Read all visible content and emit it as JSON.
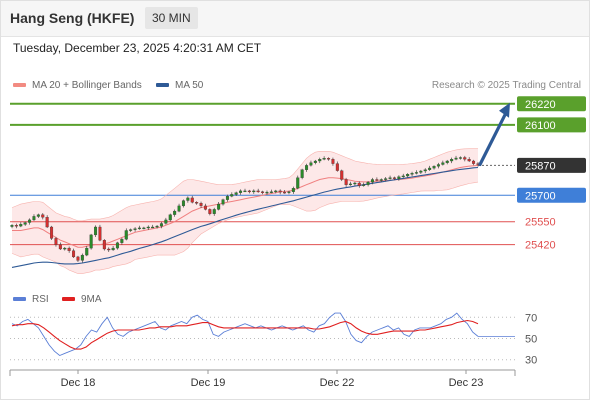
{
  "header": {
    "instrument": "Hang Seng (HKFE)",
    "timeframe": "30 MIN"
  },
  "datetime": "Tuesday, December 23, 2025 4:20:31 AM CET",
  "legend": {
    "items": [
      {
        "label": "MA 20 + Bollinger Bands",
        "color": "#f28b82"
      },
      {
        "label": "MA 50",
        "color": "#2e5a96"
      }
    ],
    "copyright": "Research © 2025 Trading Central"
  },
  "rsi_legend": {
    "items": [
      {
        "label": "RSI",
        "color": "#5b7fd6"
      },
      {
        "label": "9MA",
        "color": "#e02020"
      }
    ]
  },
  "chart_data": [
    {
      "type": "candlestick",
      "y_range": [
        25230,
        26270
      ],
      "x_tick_labels": [
        "Dec 18",
        "Dec 19",
        "Dec 22",
        "Dec 23"
      ],
      "levels": [
        {
          "label": "26220",
          "value": 26220,
          "kind": "target",
          "color": "#5aa02c"
        },
        {
          "label": "26100",
          "value": 26100,
          "kind": "resistance",
          "color": "#5aa02c"
        },
        {
          "label": "25870",
          "value": 25870,
          "kind": "last",
          "color": "#333333"
        },
        {
          "label": "25700",
          "value": 25700,
          "kind": "pivot",
          "color": "#3f7fd8"
        },
        {
          "label": "25550",
          "value": 25550,
          "kind": "support",
          "color": "#e05050"
        },
        {
          "label": "25420",
          "value": 25420,
          "kind": "support",
          "color": "#e05050"
        }
      ],
      "close": [
        25530,
        25525,
        25535,
        25545,
        25560,
        25580,
        25590,
        25575,
        25520,
        25455,
        25420,
        25395,
        25400,
        25385,
        25350,
        25330,
        25360,
        25400,
        25475,
        25520,
        25445,
        25395,
        25390,
        25400,
        25430,
        25450,
        25500,
        25505,
        25510,
        25515,
        25515,
        25520,
        25520,
        25525,
        25540,
        25560,
        25590,
        25610,
        25640,
        25670,
        25685,
        25660,
        25655,
        25640,
        25620,
        25595,
        25620,
        25650,
        25675,
        25695,
        25705,
        25715,
        25725,
        25725,
        25720,
        25725,
        25720,
        25715,
        25718,
        25720,
        25725,
        25718,
        25715,
        25720,
        25740,
        25800,
        25845,
        25870,
        25885,
        25895,
        25905,
        25910,
        25905,
        25880,
        25840,
        25790,
        25760,
        25765,
        25770,
        25755,
        25760,
        25775,
        25790,
        25785,
        25790,
        25795,
        25800,
        25795,
        25805,
        25810,
        25820,
        25825,
        25830,
        25838,
        25845,
        25855,
        25865,
        25875,
        25885,
        25895,
        25905,
        25912,
        25915,
        25905,
        25895,
        25880,
        25875
      ],
      "ma20": [
        25500,
        25500,
        25500,
        25505,
        25510,
        25515,
        25515,
        25505,
        25490,
        25475,
        25460,
        25445,
        25435,
        25425,
        25415,
        25405,
        25405,
        25410,
        25415,
        25420,
        25420,
        25425,
        25430,
        25440,
        25450,
        25460,
        25470,
        25480,
        25490,
        25495,
        25500,
        25505,
        25510,
        25515,
        25520,
        25530,
        25540,
        25550,
        25565,
        25580,
        25595,
        25610,
        25620,
        25630,
        25635,
        25640,
        25645,
        25650,
        25655,
        25660,
        25665,
        25670,
        25675,
        25680,
        25685,
        25690,
        25695,
        25700,
        25705,
        25710,
        25715,
        25720,
        25722,
        25724,
        25730,
        25740,
        25750,
        25760,
        25770,
        25780,
        25790,
        25795,
        25800,
        25800,
        25798,
        25795,
        25790,
        25785,
        25780,
        25778,
        25776,
        25776,
        25778,
        25780,
        25782,
        25784,
        25786,
        25788,
        25790,
        25792,
        25795,
        25798,
        25802,
        25806,
        25810,
        25815,
        25820,
        25826,
        25832,
        25838,
        25845,
        25852,
        25858,
        25862,
        25866,
        25868,
        25870
      ],
      "bb_upper": [
        25630,
        25640,
        25650,
        25655,
        25660,
        25665,
        25665,
        25660,
        25640,
        25620,
        25600,
        25590,
        25580,
        25575,
        25565,
        25555,
        25555,
        25560,
        25565,
        25565,
        25565,
        25570,
        25575,
        25585,
        25600,
        25615,
        25630,
        25640,
        25645,
        25650,
        25655,
        25660,
        25665,
        25670,
        25680,
        25700,
        25720,
        25740,
        25760,
        25780,
        25790,
        25790,
        25785,
        25780,
        25775,
        25770,
        25765,
        25760,
        25760,
        25760,
        25762,
        25765,
        25770,
        25775,
        25780,
        25785,
        25790,
        25790,
        25790,
        25790,
        25790,
        25792,
        25795,
        25800,
        25820,
        25850,
        25880,
        25910,
        25930,
        25945,
        25950,
        25950,
        25950,
        25945,
        25935,
        25925,
        25915,
        25905,
        25895,
        25890,
        25885,
        25880,
        25878,
        25876,
        25875,
        25874,
        25874,
        25874,
        25875,
        25876,
        25878,
        25880,
        25884,
        25888,
        25895,
        25905,
        25915,
        25925,
        25935,
        25945,
        25952,
        25958,
        25962,
        25964,
        25965,
        25965,
        25965
      ],
      "bb_lower": [
        25370,
        25360,
        25350,
        25355,
        25360,
        25365,
        25365,
        25350,
        25340,
        25330,
        25320,
        25300,
        25290,
        25275,
        25265,
        25255,
        25255,
        25260,
        25265,
        25275,
        25275,
        25280,
        25285,
        25295,
        25300,
        25305,
        25310,
        25320,
        25335,
        25340,
        25345,
        25350,
        25355,
        25360,
        25360,
        25360,
        25360,
        25360,
        25370,
        25380,
        25400,
        25430,
        25455,
        25480,
        25495,
        25510,
        25525,
        25540,
        25550,
        25560,
        25568,
        25575,
        25580,
        25585,
        25590,
        25595,
        25600,
        25610,
        25620,
        25630,
        25640,
        25648,
        25649,
        25648,
        25640,
        25630,
        25620,
        25610,
        25610,
        25615,
        25630,
        25640,
        25650,
        25655,
        25661,
        25665,
        25665,
        25665,
        25665,
        25666,
        25667,
        25672,
        25678,
        25684,
        25689,
        25694,
        25698,
        25702,
        25705,
        25708,
        25712,
        25716,
        25720,
        25724,
        25725,
        25725,
        25725,
        25727,
        25729,
        25731,
        25738,
        25746,
        25754,
        25760,
        25767,
        25771,
        25775
      ],
      "ma50": [
        25290,
        25295,
        25300,
        25305,
        25310,
        25315,
        25318,
        25320,
        25320,
        25318,
        25315,
        25312,
        25310,
        25310,
        25310,
        25312,
        25315,
        25320,
        25325,
        25330,
        25335,
        25340,
        25345,
        25352,
        25360,
        25368,
        25375,
        25382,
        25390,
        25398,
        25405,
        25412,
        25420,
        25428,
        25436,
        25445,
        25455,
        25465,
        25475,
        25485,
        25495,
        25505,
        25514,
        25523,
        25530,
        25538,
        25546,
        25555,
        25563,
        25571,
        25579,
        25587,
        25594,
        25601,
        25608,
        25615,
        25621,
        25627,
        25633,
        25639,
        25645,
        25651,
        25657,
        25663,
        25669,
        25676,
        25683,
        25690,
        25697,
        25704,
        25711,
        25718,
        25724,
        25730,
        25735,
        25740,
        25744,
        25748,
        25752,
        25756,
        25760,
        25764,
        25768,
        25772,
        25776,
        25780,
        25784,
        25788,
        25792,
        25796,
        25800,
        25804,
        25808,
        25812,
        25816,
        25820,
        25824,
        25828,
        25832,
        25836,
        25840,
        25844,
        25847,
        25850,
        25853,
        25856,
        25858
      ]
    },
    {
      "type": "line",
      "title": "RSI",
      "y_range": [
        25,
        75
      ],
      "y_tick_labels": [
        "70",
        "50",
        "30"
      ],
      "x_tick_labels": [
        "Dec 18",
        "Dec 19",
        "Dec 22",
        "Dec 23"
      ],
      "rsi": [
        64,
        62,
        66,
        68,
        64,
        60,
        52,
        44,
        38,
        34,
        36,
        38,
        40,
        44,
        52,
        58,
        56,
        64,
        70,
        60,
        54,
        52,
        56,
        58,
        60,
        62,
        64,
        66,
        60,
        58,
        62,
        64,
        66,
        64,
        70,
        72,
        68,
        66,
        54,
        52,
        56,
        58,
        60,
        62,
        64,
        62,
        60,
        62,
        60,
        58,
        60,
        62,
        60,
        58,
        60,
        62,
        58,
        56,
        62,
        64,
        70,
        74,
        74,
        66,
        54,
        48,
        46,
        52,
        56,
        58,
        60,
        62,
        58,
        60,
        54,
        52,
        58,
        60,
        60,
        60,
        62,
        64,
        68,
        70,
        74,
        68,
        64,
        56,
        52
      ],
      "ma9": [
        62,
        63,
        63,
        64,
        64,
        63,
        60,
        56,
        52,
        48,
        45,
        42,
        40,
        40,
        42,
        46,
        49,
        52,
        55,
        57,
        58,
        58,
        58,
        58,
        58,
        59,
        60,
        60,
        61,
        61,
        61,
        62,
        62,
        62,
        63,
        64,
        65,
        65,
        63,
        61,
        60,
        60,
        60,
        60,
        60,
        60,
        60,
        60,
        60,
        60,
        60,
        60,
        60,
        60,
        60,
        60,
        60,
        59,
        59,
        60,
        61,
        63,
        65,
        66,
        64,
        60,
        57,
        55,
        54,
        54,
        55,
        56,
        57,
        57,
        57,
        57,
        57,
        58,
        58,
        59,
        60,
        61,
        62,
        63,
        65,
        66,
        67,
        66,
        64
      ]
    }
  ]
}
